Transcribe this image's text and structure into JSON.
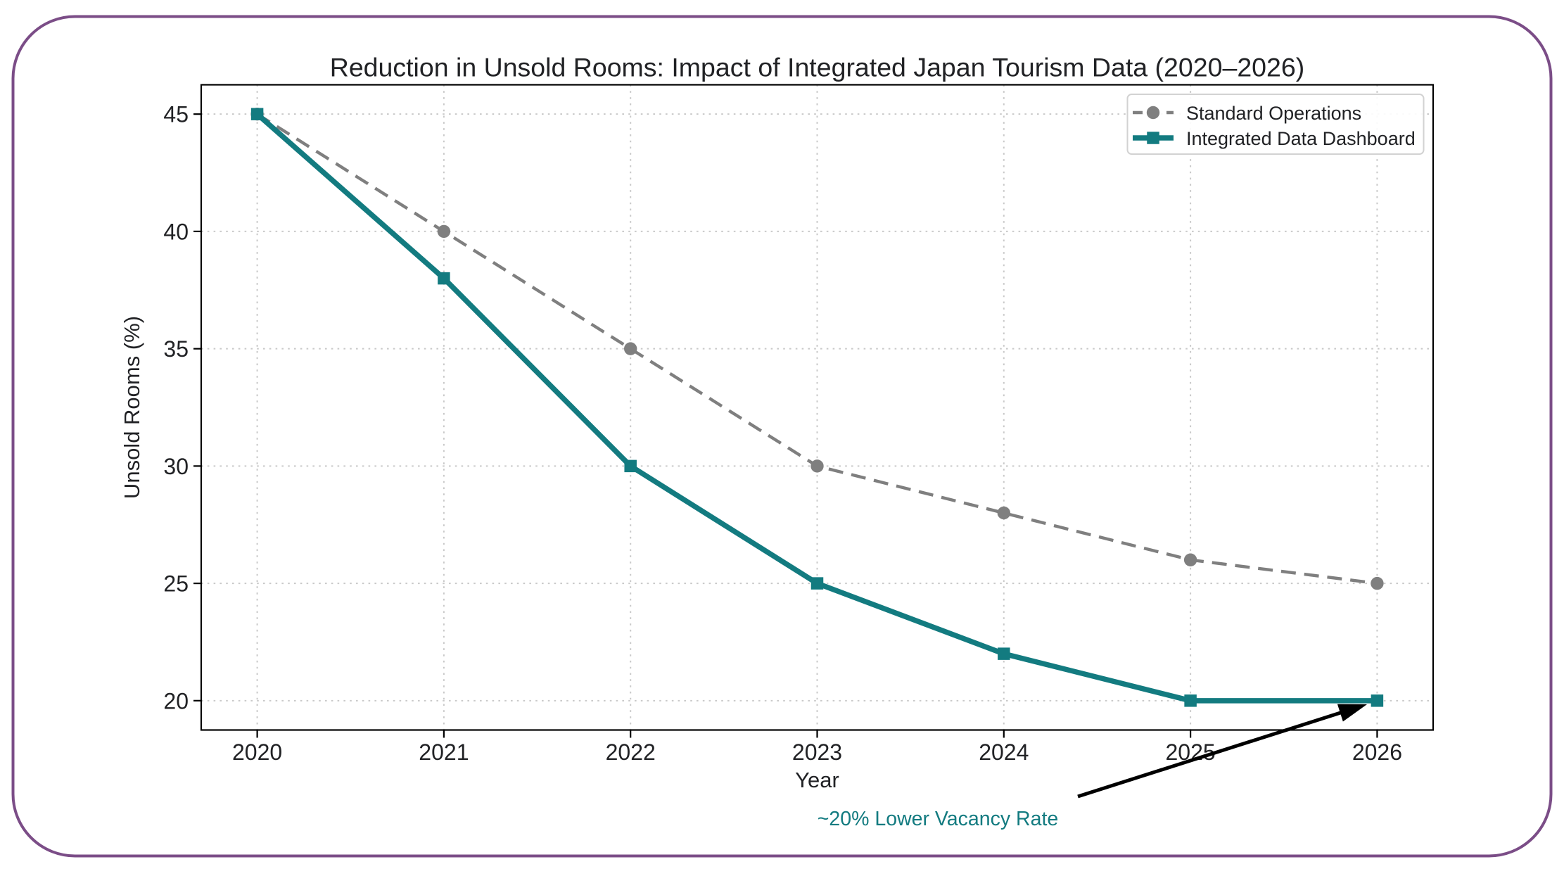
{
  "figure": {
    "background": "#ffffff",
    "frame_border_color": "#7b4d87",
    "text_color": "#212225",
    "axis_color": "#000000",
    "grid_color": "#c9c9c9",
    "legend_border_color": "#d2d2d2"
  },
  "chart_data": {
    "type": "line",
    "title": "Reduction in Unsold Rooms: Impact of Integrated Japan Tourism Data (2020–2026)",
    "xlabel": "Year",
    "ylabel": "Unsold Rooms (%)",
    "x": [
      2020,
      2021,
      2022,
      2023,
      2024,
      2025,
      2026
    ],
    "series": [
      {
        "name": "Standard Operations",
        "values": [
          45,
          40,
          35,
          30,
          28,
          26,
          25
        ],
        "color": "#7f7f7f",
        "line_style": "dashed",
        "marker": "circle"
      },
      {
        "name": "Integrated Data Dashboard",
        "values": [
          45,
          38,
          30,
          25,
          22,
          20,
          20
        ],
        "color": "#137b80",
        "line_style": "solid",
        "marker": "square"
      }
    ],
    "yticks": [
      20,
      25,
      30,
      35,
      40,
      45
    ],
    "xlim": [
      2019.7,
      2026.3
    ],
    "ylim": [
      18.75,
      46.25
    ],
    "grid": true,
    "legend_position": "upper right",
    "annotation": {
      "text": "~20% Lower Vacancy Rate",
      "color": "#137b80",
      "target_x": 2026,
      "target_y": 20
    }
  }
}
